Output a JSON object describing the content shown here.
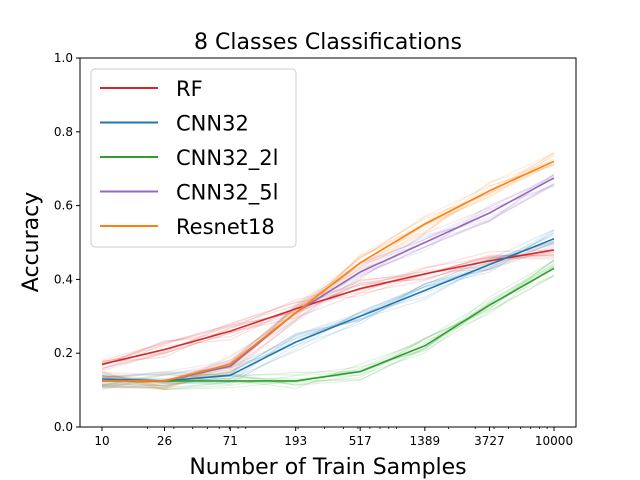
{
  "chart_data": {
    "type": "line",
    "title": "8 Classes Classifications",
    "xlabel": "Number of Train Samples",
    "ylabel": "Accuracy",
    "x": [
      10,
      26,
      71,
      193,
      517,
      1389,
      3727,
      10000
    ],
    "x_tick_labels": [
      "10",
      "26",
      "71",
      "193",
      "517",
      "1389",
      "3727",
      "10000"
    ],
    "x_scale": "log",
    "ylim": [
      0.0,
      1.0
    ],
    "y_ticks": [
      0.0,
      0.2,
      0.4,
      0.6,
      0.8,
      1.0
    ],
    "y_tick_labels": [
      "0.0",
      "0.2",
      "0.4",
      "0.6",
      "0.8",
      "1.0"
    ],
    "grid": false,
    "legend_position": "top-left",
    "series": [
      {
        "name": "RF",
        "color": "#d62728",
        "values": [
          0.17,
          0.21,
          0.26,
          0.32,
          0.375,
          0.415,
          0.45,
          0.48
        ]
      },
      {
        "name": "CNN32",
        "color": "#1f77b4",
        "values": [
          0.13,
          0.125,
          0.14,
          0.23,
          0.3,
          0.37,
          0.44,
          0.51
        ]
      },
      {
        "name": "CNN32_2l",
        "color": "#2ca02c",
        "values": [
          0.125,
          0.125,
          0.125,
          0.125,
          0.15,
          0.22,
          0.33,
          0.43
        ]
      },
      {
        "name": "CNN32_5l",
        "color": "#9467bd",
        "values": [
          0.125,
          0.125,
          0.165,
          0.31,
          0.42,
          0.5,
          0.58,
          0.675
        ]
      },
      {
        "name": "Resnet18",
        "color": "#ff7f0e",
        "values": [
          0.125,
          0.125,
          0.17,
          0.31,
          0.445,
          0.55,
          0.64,
          0.72
        ]
      }
    ]
  }
}
